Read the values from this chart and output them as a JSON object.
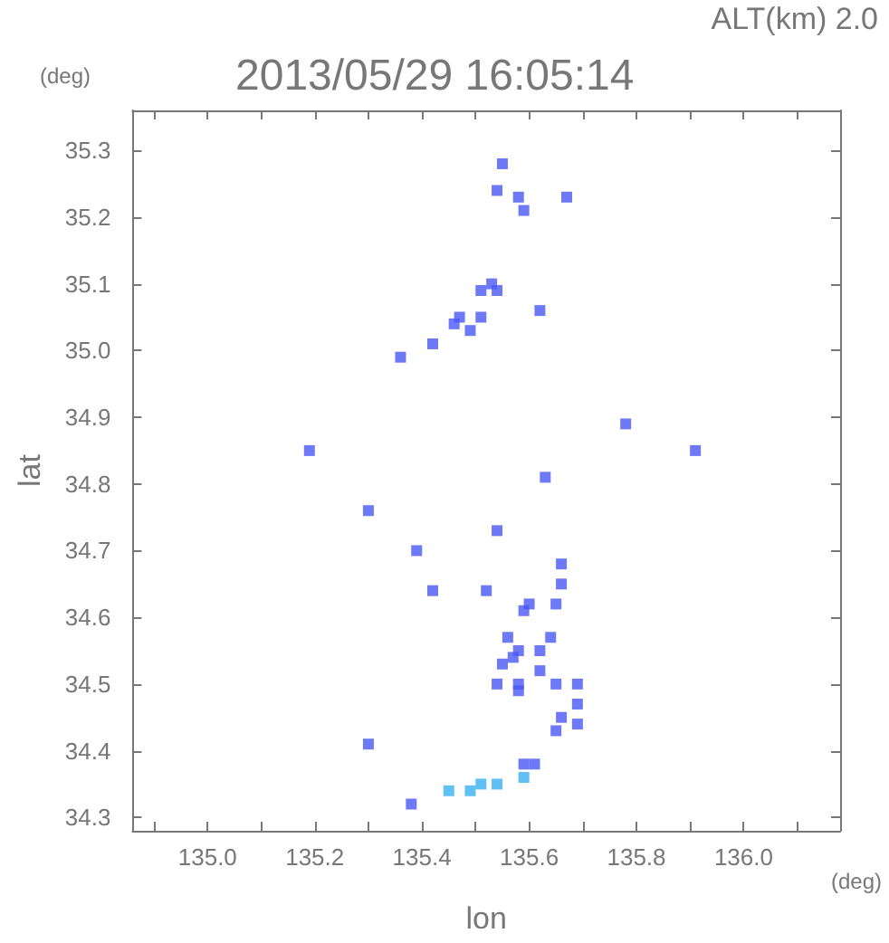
{
  "chart_data": {
    "type": "scatter",
    "title": "2013/05/29 16:05:14",
    "xlabel": "lon",
    "ylabel": "lat",
    "annotations": [
      "ALT(km) 2.0",
      "(deg)",
      "(deg)"
    ],
    "xlim": [
      134.86,
      136.18
    ],
    "xticks": [
      {
        "value": 134.9,
        "label": null
      },
      {
        "value": 135,
        "label": "135.0"
      },
      {
        "value": 135.1,
        "label": null
      },
      {
        "value": 135.2,
        "label": "135.2"
      },
      {
        "value": 135.3,
        "label": null
      },
      {
        "value": 135.4,
        "label": "135.4"
      },
      {
        "value": 135.5,
        "label": null
      },
      {
        "value": 135.6,
        "label": "135.6"
      },
      {
        "value": 135.7,
        "label": null
      },
      {
        "value": 135.8,
        "label": "135.8"
      },
      {
        "value": 135.9,
        "label": null
      },
      {
        "value": 136,
        "label": "136.0"
      },
      {
        "value": 136.1,
        "label": null
      }
    ],
    "ylim": [
      34.28,
      35.36
    ],
    "yticks": [
      34.3,
      34.4,
      34.5,
      34.6,
      34.7,
      34.8,
      34.9,
      {
        "value": 35,
        "label": "35.0"
      },
      35.1,
      35.2,
      35.3
    ],
    "grid": false,
    "marker": "square",
    "series": [
      {
        "color": "#4a58f5",
        "x": [
          135.55,
          135.54,
          135.59,
          135.58,
          135.67,
          135.53,
          135.51,
          135.54,
          135.47,
          135.46,
          135.51,
          135.62,
          135.36,
          135.42,
          135.49,
          135.19,
          135.78,
          135.91,
          135.63,
          135.3,
          135.54,
          135.39,
          135.42,
          135.52,
          135.66,
          135.66,
          135.65,
          135.6,
          135.59,
          135.64,
          135.56,
          135.58,
          135.57,
          135.62,
          135.55,
          135.62,
          135.54,
          135.58,
          135.58,
          135.65,
          135.69,
          135.69,
          135.66,
          135.69,
          135.65,
          135.3,
          135.59,
          135.61,
          135.38
        ],
        "values": [
          35.28,
          35.24,
          35.21,
          35.23,
          35.23,
          35.1,
          35.09,
          35.09,
          35.05,
          35.04,
          35.05,
          35.06,
          34.99,
          35.01,
          35.03,
          34.85,
          34.89,
          34.85,
          34.81,
          34.76,
          34.73,
          34.7,
          34.64,
          34.64,
          34.68,
          34.65,
          34.62,
          34.62,
          34.61,
          34.57,
          34.57,
          34.55,
          34.54,
          34.55,
          34.53,
          34.52,
          34.5,
          34.5,
          34.49,
          34.5,
          34.5,
          34.47,
          34.45,
          34.44,
          34.43,
          34.41,
          34.38,
          34.38,
          34.32
        ]
      },
      {
        "color": "#3ab0f0",
        "x": [
          135.54,
          135.49,
          135.45,
          135.51,
          135.59
        ],
        "values": [
          34.35,
          34.34,
          34.34,
          34.35,
          34.36
        ]
      }
    ]
  }
}
